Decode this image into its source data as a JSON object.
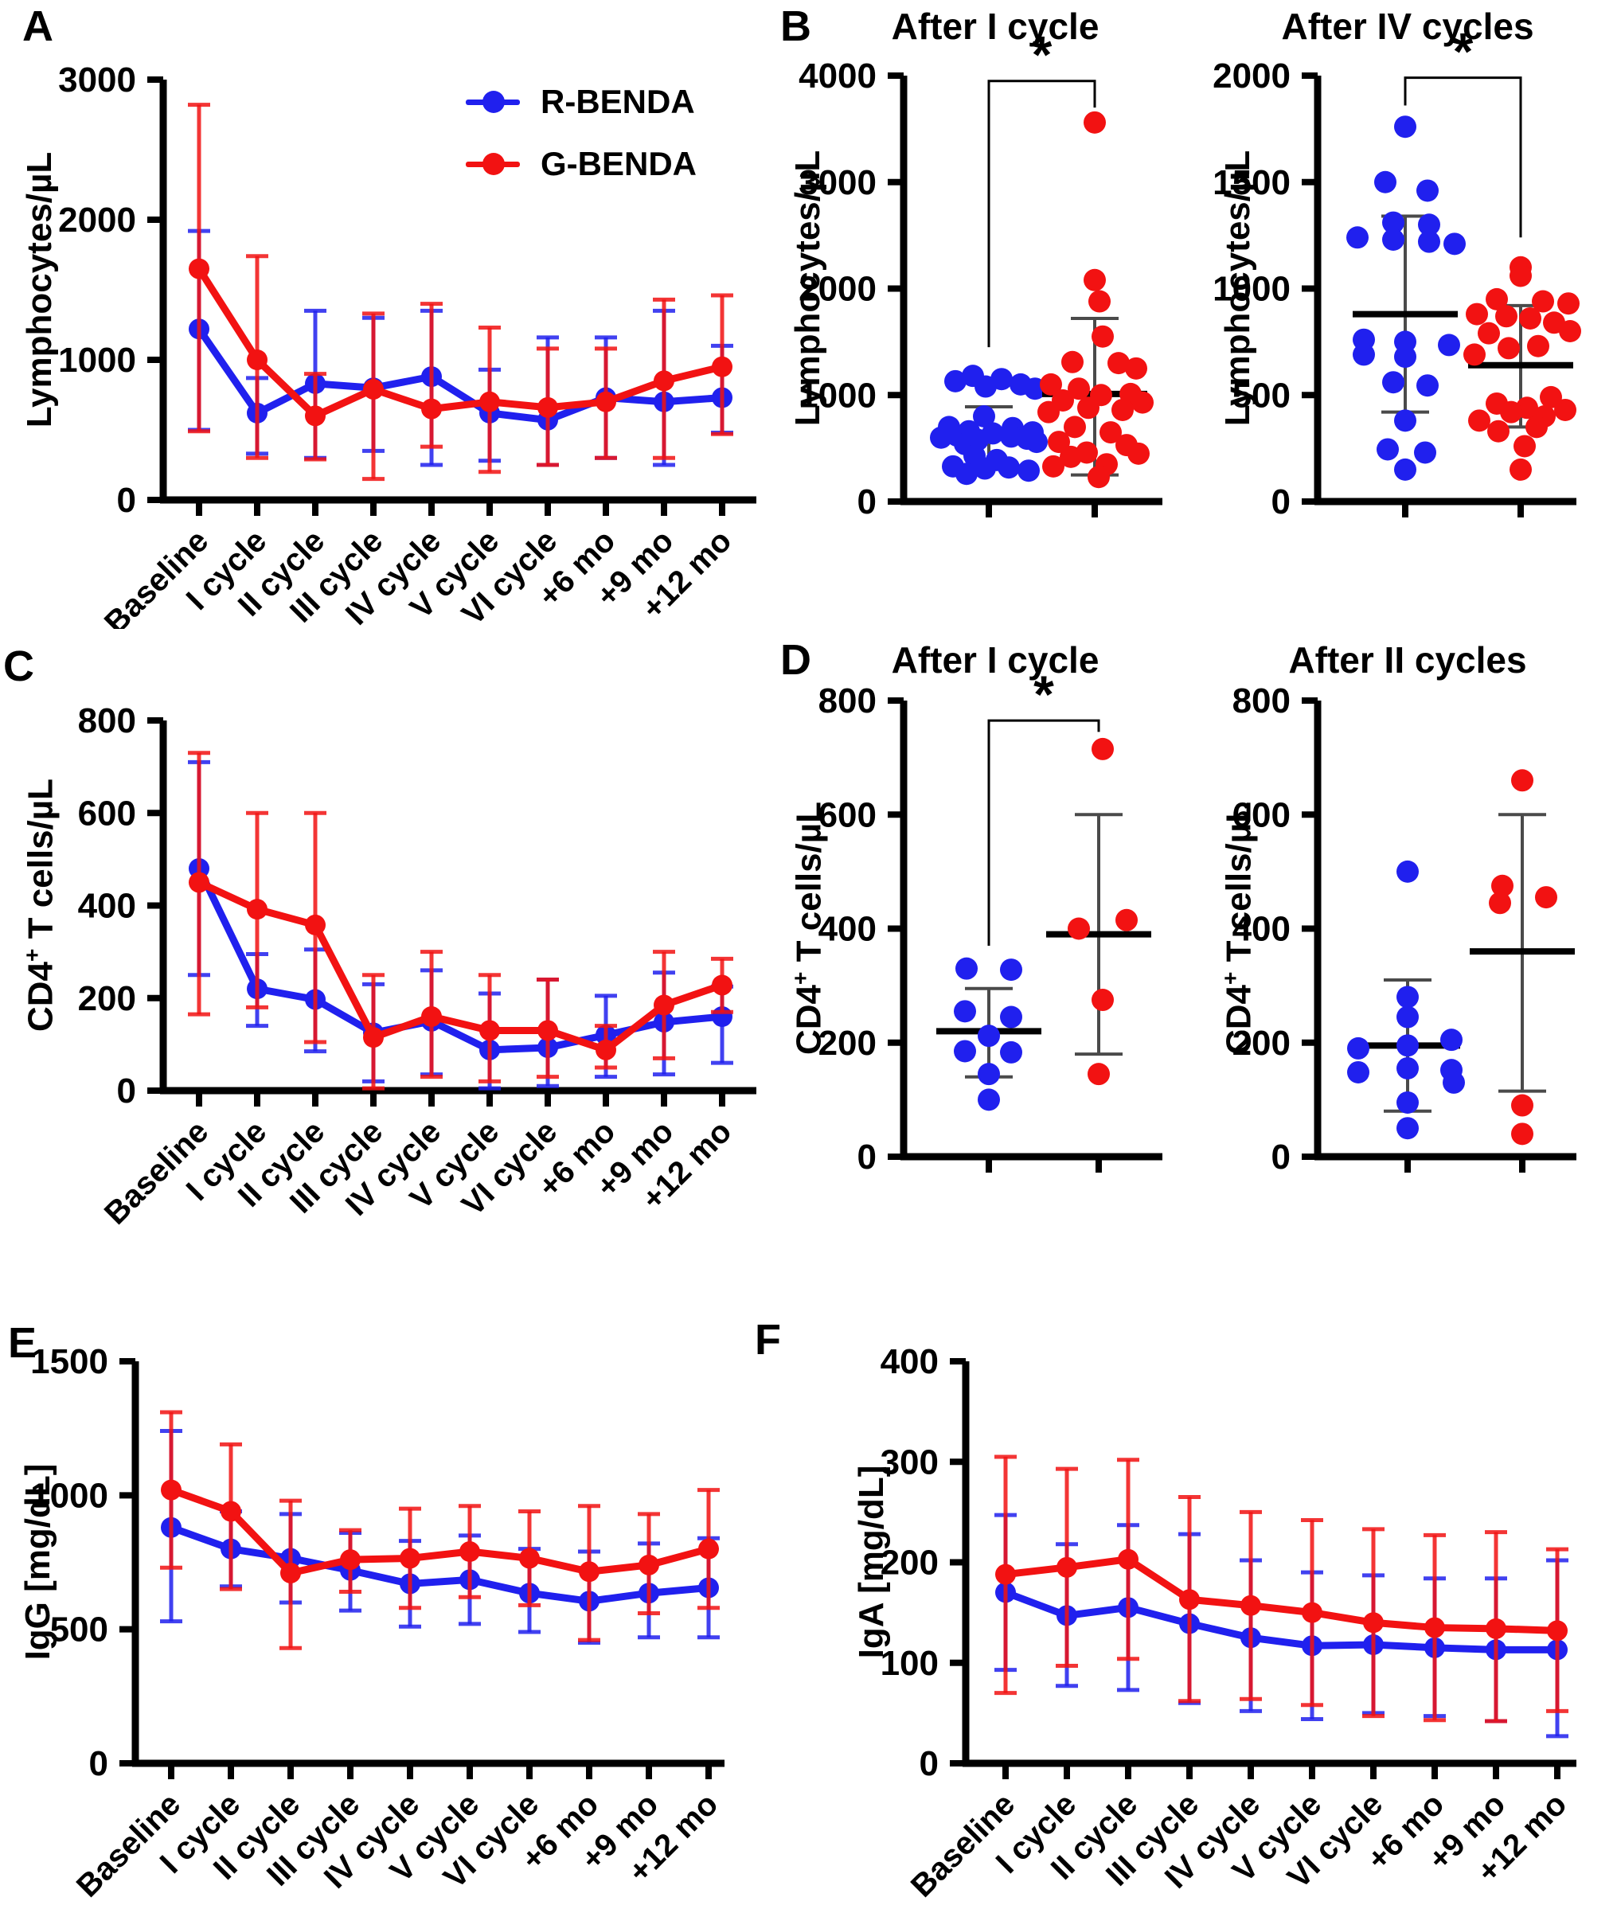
{
  "panels": {
    "a": "A",
    "b": "B",
    "c": "C",
    "d": "D",
    "e": "E",
    "f": "F"
  },
  "legend": {
    "items": [
      {
        "label": "R-BENDA"
      },
      {
        "label": "G-BENDA"
      }
    ]
  },
  "colors": {
    "r_benda": "#2020ee",
    "g_benda": "#f21212",
    "axis": "#000000",
    "whisker": "#4a4a4a"
  },
  "chart_data": [
    {
      "id": "A",
      "type": "line",
      "title": "",
      "ylabel": "Lymphocytes/µL",
      "ylim": [
        0,
        3000
      ],
      "yticks": [
        0,
        1000,
        2000,
        3000
      ],
      "categories": [
        "Baseline",
        "I cycle",
        "II cycle",
        "III cycle",
        "IV cycle",
        "V cycle",
        "VI cycle",
        "+6 mo",
        "+9 mo",
        "+12 mo"
      ],
      "series": [
        {
          "name": "R-BENDA",
          "color": "#2020ee",
          "values": [
            1220,
            620,
            830,
            800,
            880,
            620,
            570,
            730,
            700,
            730
          ],
          "err_lo": [
            500,
            330,
            300,
            350,
            250,
            280,
            250,
            300,
            250,
            480
          ],
          "err_hi": [
            1920,
            870,
            1350,
            1300,
            1350,
            930,
            1160,
            1160,
            1350,
            1100
          ]
        },
        {
          "name": "G-BENDA",
          "color": "#f21212",
          "values": [
            1650,
            1000,
            600,
            790,
            650,
            700,
            660,
            700,
            850,
            950
          ],
          "err_lo": [
            490,
            300,
            290,
            150,
            380,
            200,
            250,
            300,
            300,
            470
          ],
          "err_hi": [
            2820,
            1740,
            900,
            1330,
            1400,
            1230,
            1080,
            1080,
            1430,
            1460
          ]
        }
      ]
    },
    {
      "id": "B1",
      "type": "scatter",
      "title": "After I cycle",
      "ylabel": "Lymphocytes/µL",
      "ylim": [
        0,
        4000
      ],
      "yticks": [
        0,
        1000,
        2000,
        3000,
        4000
      ],
      "groups": [
        {
          "name": "R-BENDA",
          "color": "#2020ee",
          "mean": 600,
          "sd_lo": 310,
          "sd_hi": 890,
          "values": [
            1180,
            1150,
            1130,
            1100,
            1080,
            1060,
            800,
            700,
            690,
            660,
            650,
            640,
            620,
            610,
            600,
            590,
            580,
            560,
            540,
            430,
            390,
            330,
            320,
            310,
            290,
            260
          ],
          "jitter": [
            -20,
            16,
            -42,
            40,
            -4,
            58,
            -6,
            -50,
            30,
            -25,
            55,
            5,
            -40,
            28,
            -60,
            48,
            -14,
            60,
            -30,
            -18,
            10,
            -45,
            25,
            -5,
            50,
            -28
          ]
        },
        {
          "name": "G-BENDA",
          "color": "#f21212",
          "mean": 1010,
          "sd_lo": 250,
          "sd_hi": 1720,
          "values": [
            3560,
            2080,
            1880,
            1550,
            1310,
            1300,
            1250,
            1100,
            1060,
            1010,
            1000,
            950,
            930,
            880,
            860,
            840,
            700,
            650,
            560,
            530,
            460,
            450,
            420,
            350,
            330,
            230
          ],
          "jitter": [
            0,
            0,
            6,
            10,
            -28,
            30,
            52,
            -55,
            -20,
            45,
            8,
            -40,
            60,
            -8,
            35,
            -58,
            -25,
            20,
            -45,
            40,
            -10,
            55,
            -30,
            15,
            -52,
            5
          ]
        }
      ],
      "significance": {
        "label": "*",
        "left_y": 1450,
        "top_y": 3950,
        "right_y": 3700
      }
    },
    {
      "id": "B2",
      "type": "scatter",
      "title": "After IV cycles",
      "ylabel": "Lymphocytes/µL",
      "ylim": [
        0,
        2000
      ],
      "yticks": [
        0,
        500,
        1000,
        1500,
        2000
      ],
      "groups": [
        {
          "name": "R-BENDA",
          "color": "#2020ee",
          "mean": 880,
          "sd_lo": 420,
          "sd_hi": 1340,
          "values": [
            1760,
            1500,
            1460,
            1310,
            1300,
            1240,
            1230,
            1220,
            1210,
            760,
            750,
            735,
            690,
            680,
            560,
            545,
            380,
            245,
            230,
            150
          ],
          "jitter": [
            0,
            -25,
            28,
            -15,
            30,
            -60,
            -15,
            30,
            62,
            -52,
            0,
            55,
            -52,
            0,
            -15,
            28,
            0,
            -22,
            25,
            0
          ]
        },
        {
          "name": "G-BENDA",
          "color": "#f21212",
          "mean": 640,
          "sd_lo": 350,
          "sd_hi": 920,
          "values": [
            1100,
            1060,
            950,
            940,
            930,
            880,
            870,
            860,
            840,
            800,
            790,
            730,
            720,
            690,
            490,
            460,
            440,
            430,
            420,
            400,
            380,
            350,
            330,
            260,
            150
          ],
          "jitter": [
            0,
            0,
            -30,
            28,
            60,
            -55,
            -18,
            12,
            42,
            62,
            -40,
            22,
            -15,
            -58,
            38,
            -30,
            8,
            56,
            -12,
            30,
            -52,
            20,
            -28,
            5,
            0
          ]
        }
      ],
      "significance": {
        "label": "*",
        "left_y": 1860,
        "top_y": 1990,
        "right_y": 1240
      }
    },
    {
      "id": "C",
      "type": "line",
      "title": "",
      "ylabel": "CD4+ T cells/µL",
      "ylabel_parts": {
        "pre": "CD4",
        "sup": "+",
        "post": " T cells/µL"
      },
      "ylim": [
        0,
        800
      ],
      "yticks": [
        0,
        200,
        400,
        600,
        800
      ],
      "categories": [
        "Baseline",
        "I cycle",
        "II cycle",
        "III cycle",
        "IV cycle",
        "V cycle",
        "VI cycle",
        "+6 mo",
        "+9 mo",
        "+12 mo"
      ],
      "series": [
        {
          "name": "R-BENDA",
          "color": "#2020ee",
          "values": [
            480,
            220,
            197,
            125,
            150,
            88,
            93,
            120,
            148,
            160
          ],
          "err_lo": [
            250,
            140,
            85,
            20,
            35,
            5,
            10,
            30,
            35,
            60
          ],
          "err_hi": [
            710,
            295,
            305,
            230,
            260,
            210,
            240,
            205,
            255,
            225
          ]
        },
        {
          "name": "G-BENDA",
          "color": "#f21212",
          "values": [
            450,
            392,
            358,
            115,
            160,
            130,
            130,
            88,
            185,
            228
          ],
          "err_lo": [
            165,
            180,
            105,
            5,
            30,
            20,
            30,
            50,
            70,
            170
          ],
          "err_hi": [
            730,
            600,
            600,
            250,
            300,
            250,
            240,
            140,
            300,
            285
          ]
        }
      ]
    },
    {
      "id": "D1",
      "type": "scatter",
      "title": "After I cycle",
      "ylabel": "CD4+ T cells/µL",
      "ylabel_parts": {
        "pre": "CD4",
        "sup": "+",
        "post": " T cells/µL"
      },
      "ylim": [
        0,
        800
      ],
      "yticks": [
        0,
        200,
        400,
        600,
        800
      ],
      "groups": [
        {
          "name": "R-BENDA",
          "color": "#2020ee",
          "mean": 220,
          "sd_lo": 140,
          "sd_hi": 295,
          "values": [
            330,
            328,
            255,
            245,
            212,
            185,
            183,
            145,
            100
          ],
          "jitter": [
            -28,
            28,
            -30,
            28,
            0,
            -30,
            28,
            0,
            0
          ]
        },
        {
          "name": "G-BENDA",
          "color": "#f21212",
          "mean": 390,
          "sd_lo": 180,
          "sd_hi": 600,
          "values": [
            715,
            415,
            400,
            275,
            145
          ],
          "jitter": [
            5,
            35,
            -25,
            5,
            0
          ]
        }
      ],
      "significance": {
        "label": "*",
        "left_y": 370,
        "top_y": 765,
        "right_y": 745
      }
    },
    {
      "id": "D2",
      "type": "scatter",
      "title": "After II cycles",
      "ylabel": "CD4+ T cells/µL",
      "ylabel_parts": {
        "pre": "CD4",
        "sup": "+",
        "post": " T cells/µL"
      },
      "ylim": [
        0,
        800
      ],
      "yticks": [
        0,
        200,
        400,
        600,
        800
      ],
      "groups": [
        {
          "name": "R-BENDA",
          "color": "#2020ee",
          "mean": 195,
          "sd_lo": 80,
          "sd_hi": 310,
          "values": [
            500,
            280,
            245,
            205,
            195,
            190,
            155,
            152,
            148,
            130,
            95,
            50
          ],
          "jitter": [
            0,
            0,
            0,
            55,
            0,
            -62,
            0,
            55,
            -62,
            58,
            0,
            0
          ]
        },
        {
          "name": "G-BENDA",
          "color": "#f21212",
          "mean": 360,
          "sd_lo": 115,
          "sd_hi": 600,
          "values": [
            660,
            475,
            455,
            445,
            90,
            40
          ],
          "jitter": [
            0,
            -25,
            30,
            -28,
            0,
            0
          ]
        }
      ]
    },
    {
      "id": "E",
      "type": "line",
      "title": "",
      "ylabel": "IgG [mg/dL]",
      "ylim": [
        0,
        1500
      ],
      "yticks": [
        0,
        500,
        1000,
        1500
      ],
      "categories": [
        "Baseline",
        "I cycle",
        "II cycle",
        "III cycle",
        "IV cycle",
        "V cycle",
        "VI cycle",
        "+6 mo",
        "+9 mo",
        "+12 mo"
      ],
      "series": [
        {
          "name": "R-BENDA",
          "color": "#2020ee",
          "values": [
            880,
            800,
            765,
            720,
            670,
            685,
            635,
            605,
            635,
            655
          ],
          "err_lo": [
            530,
            660,
            600,
            570,
            510,
            520,
            490,
            450,
            470,
            470
          ],
          "err_hi": [
            1240,
            940,
            930,
            860,
            830,
            850,
            800,
            790,
            820,
            840
          ]
        },
        {
          "name": "G-BENDA",
          "color": "#f21212",
          "values": [
            1020,
            940,
            710,
            760,
            765,
            790,
            765,
            715,
            740,
            800
          ],
          "err_lo": [
            730,
            650,
            430,
            640,
            580,
            620,
            590,
            460,
            560,
            580
          ],
          "err_hi": [
            1310,
            1190,
            980,
            870,
            950,
            960,
            940,
            960,
            930,
            1020
          ]
        }
      ]
    },
    {
      "id": "F",
      "type": "line",
      "title": "",
      "ylabel": "IgA [mg/dL]",
      "ylim": [
        0,
        400
      ],
      "yticks": [
        0,
        100,
        200,
        300,
        400
      ],
      "categories": [
        "Baseline",
        "I cycle",
        "II cycle",
        "III cycle",
        "IV cycle",
        "V cycle",
        "VI cycle",
        "+6 mo",
        "+9 mo",
        "+12 mo"
      ],
      "series": [
        {
          "name": "R-BENDA",
          "color": "#2020ee",
          "values": [
            170,
            147,
            155,
            139,
            125,
            117,
            118,
            115,
            113,
            113
          ],
          "err_lo": [
            93,
            77,
            73,
            60,
            52,
            44,
            50,
            47,
            42,
            27
          ],
          "err_hi": [
            247,
            218,
            237,
            228,
            202,
            190,
            187,
            184,
            184,
            202
          ]
        },
        {
          "name": "G-BENDA",
          "color": "#f21212",
          "values": [
            188,
            195,
            203,
            163,
            157,
            150,
            140,
            135,
            134,
            132
          ],
          "err_lo": [
            70,
            97,
            104,
            62,
            64,
            58,
            47,
            43,
            42,
            52
          ],
          "err_hi": [
            305,
            293,
            302,
            265,
            250,
            242,
            233,
            227,
            230,
            213
          ]
        }
      ]
    }
  ]
}
